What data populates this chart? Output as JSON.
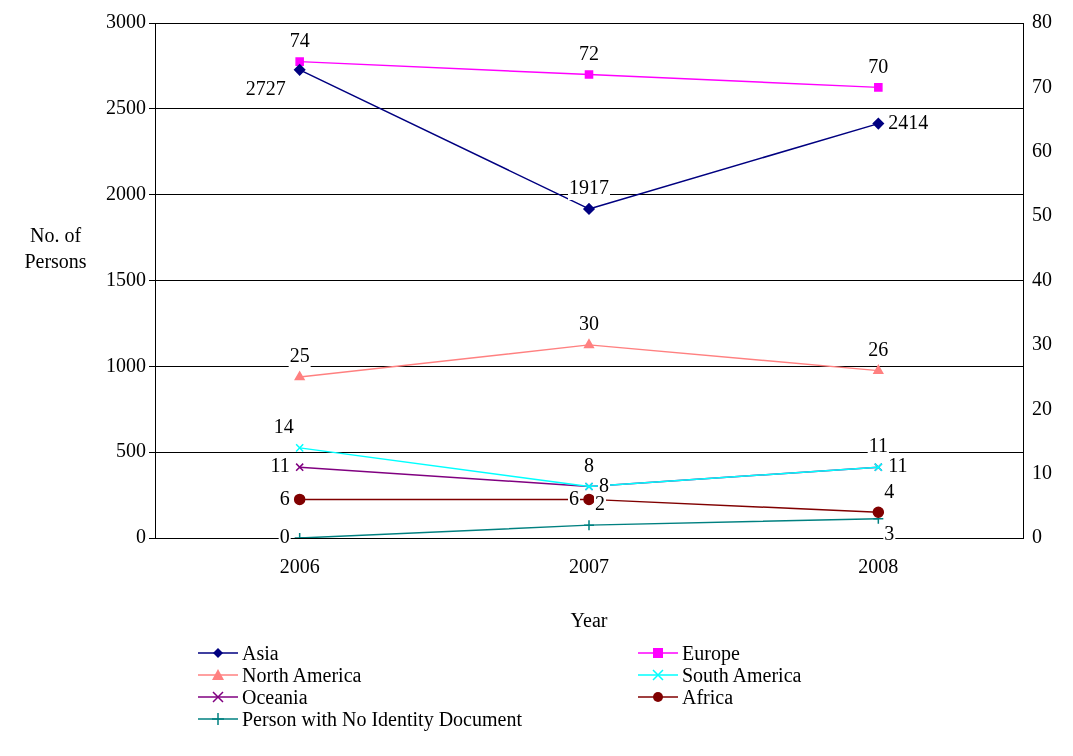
{
  "chart_data": {
    "type": "line",
    "xlabel": "Year",
    "ylabel": "No. of Persons",
    "categories": [
      "2006",
      "2007",
      "2008"
    ],
    "ylim": [
      0,
      3000
    ],
    "yticks": [
      0,
      500,
      1000,
      1500,
      2000,
      2500,
      3000
    ],
    "y2lim": [
      0,
      80
    ],
    "y2ticks": [
      0,
      10,
      20,
      30,
      40,
      50,
      60,
      70,
      80
    ],
    "grid": "y",
    "legend": "bottom",
    "data_labels": true,
    "line_style": "solid",
    "series": [
      {
        "name": "Asia",
        "color": "#000080",
        "marker": "diamond",
        "values": [
          2727,
          1917,
          2414
        ]
      },
      {
        "name": "Europe",
        "color": "#ff00ff",
        "marker": "square",
        "axis": "y2",
        "values": [
          74,
          72,
          70
        ]
      },
      {
        "name": "North America",
        "color": "#ff8080",
        "marker": "triangle",
        "axis": "y2",
        "values": [
          25,
          30,
          26
        ]
      },
      {
        "name": "South America",
        "color": "#00ffff",
        "marker": "cross",
        "axis": "y2",
        "values": [
          14,
          8,
          11
        ]
      },
      {
        "name": "Oceania",
        "color": "#800080",
        "marker": "cross",
        "axis": "y2",
        "values": [
          11,
          8,
          11
        ]
      },
      {
        "name": "Africa",
        "color": "#800000",
        "marker": "circle",
        "axis": "y2",
        "values": [
          6,
          6,
          4
        ]
      },
      {
        "name": "Person with No Identity Document",
        "color": "#008080",
        "marker": "plus",
        "axis": "y2",
        "values": [
          0,
          2,
          3
        ]
      }
    ]
  }
}
